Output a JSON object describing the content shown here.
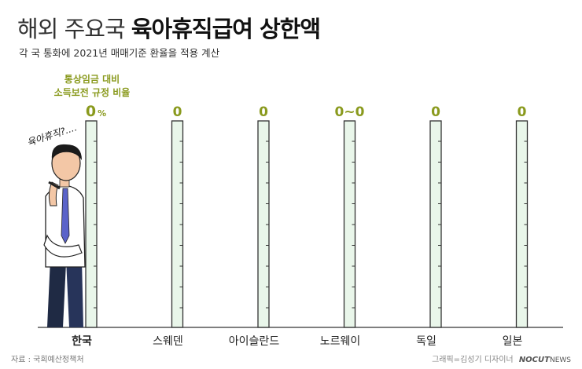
{
  "header": {
    "title_light": "해외 주요국",
    "title_bold": "육아휴직급여 상한액",
    "subtitle": "각 국 통화에 2021년 매매기준 환율을 적용 계산"
  },
  "ratio_label": [
    "통상임금 대비",
    "소득보전 규정 비율"
  ],
  "person_thought": "육아휴직?....",
  "footer": {
    "source": "자료 : 국회예산정책처",
    "credit": "그래픽=김성기 디자이너",
    "brand": "NOCUT",
    "brand_suffix": "NEWS"
  },
  "colors": {
    "accent": "#8a9a1e",
    "bar_fill": "#e9f6ea",
    "bar_stroke": "#333333"
  },
  "chart_data": {
    "type": "bar",
    "title": "해외 주요국 육아휴직급여 상한액",
    "subtitle": "각 국 통화에 2021년 매매기준 환율을 적용 계산",
    "categories": [
      "한국",
      "스웨덴",
      "아이슬란드",
      "노르웨이",
      "독일",
      "일본"
    ],
    "value_labels": [
      "0%",
      "0",
      "0",
      "0~0",
      "0",
      "0"
    ],
    "values": [
      0,
      0,
      0,
      0,
      0,
      0
    ],
    "xlabel": "",
    "ylabel": "",
    "grid": false
  }
}
